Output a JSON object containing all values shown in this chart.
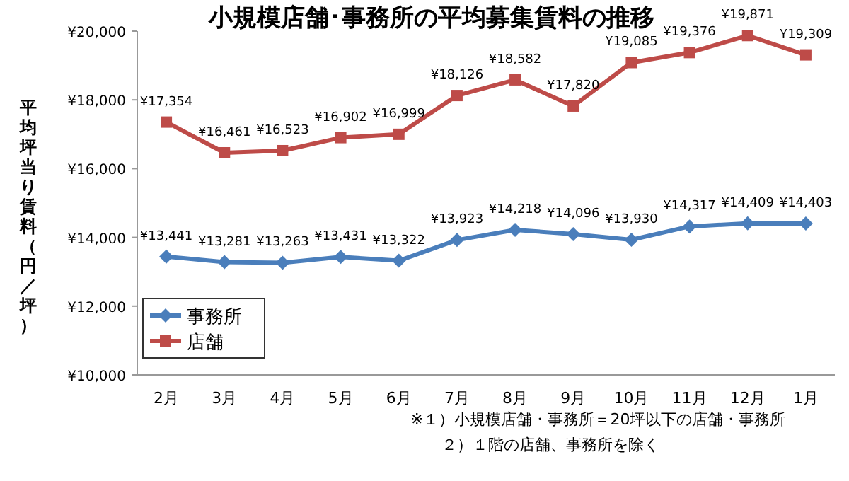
{
  "chart_data": {
    "type": "line",
    "title": "小規模店舗･事務所の平均募集賃料の推移",
    "ylabel": "平均坪当り賃料（円／坪）",
    "categories": [
      "2月",
      "3月",
      "4月",
      "5月",
      "6月",
      "7月",
      "8月",
      "9月",
      "10月",
      "11月",
      "12月",
      "1月"
    ],
    "series": [
      {
        "name": "事務所",
        "color": "#4a7ebb",
        "marker": "diamond",
        "values": [
          13441,
          13281,
          13263,
          13431,
          13322,
          13923,
          14218,
          14096,
          13930,
          14317,
          14409,
          14403
        ],
        "value_labels": [
          "¥13,441",
          "¥13,281",
          "¥13,263",
          "¥13,431",
          "¥13,322",
          "¥13,923",
          "¥14,218",
          "¥14,096",
          "¥13,930",
          "¥14,317",
          "¥14,409",
          "¥14,403"
        ]
      },
      {
        "name": "店舗",
        "color": "#be4b48",
        "marker": "square",
        "values": [
          17354,
          16461,
          16523,
          16902,
          16999,
          18126,
          18582,
          17820,
          19085,
          19376,
          19871,
          19309
        ],
        "value_labels": [
          "¥17,354",
          "¥16,461",
          "¥16,523",
          "¥16,902",
          "¥16,999",
          "¥18,126",
          "¥18,582",
          "¥17,820",
          "¥19,085",
          "¥19,376",
          "¥19,871",
          "¥19,309"
        ]
      }
    ],
    "ylim": [
      10000,
      20000
    ],
    "yticks": [
      {
        "value": 10000,
        "label": "¥10,000"
      },
      {
        "value": 12000,
        "label": "¥12,000"
      },
      {
        "value": 14000,
        "label": "¥14,000"
      },
      {
        "value": 16000,
        "label": "¥16,000"
      },
      {
        "value": 18000,
        "label": "¥18,000"
      },
      {
        "value": 20000,
        "label": "¥20,000"
      }
    ],
    "legend": "bottom left",
    "grid": false,
    "annotations": [
      "※１）小規模店舗・事務所＝20坪以下の店舗・事務所",
      "２）１階の店舗、事務所を除く"
    ]
  }
}
